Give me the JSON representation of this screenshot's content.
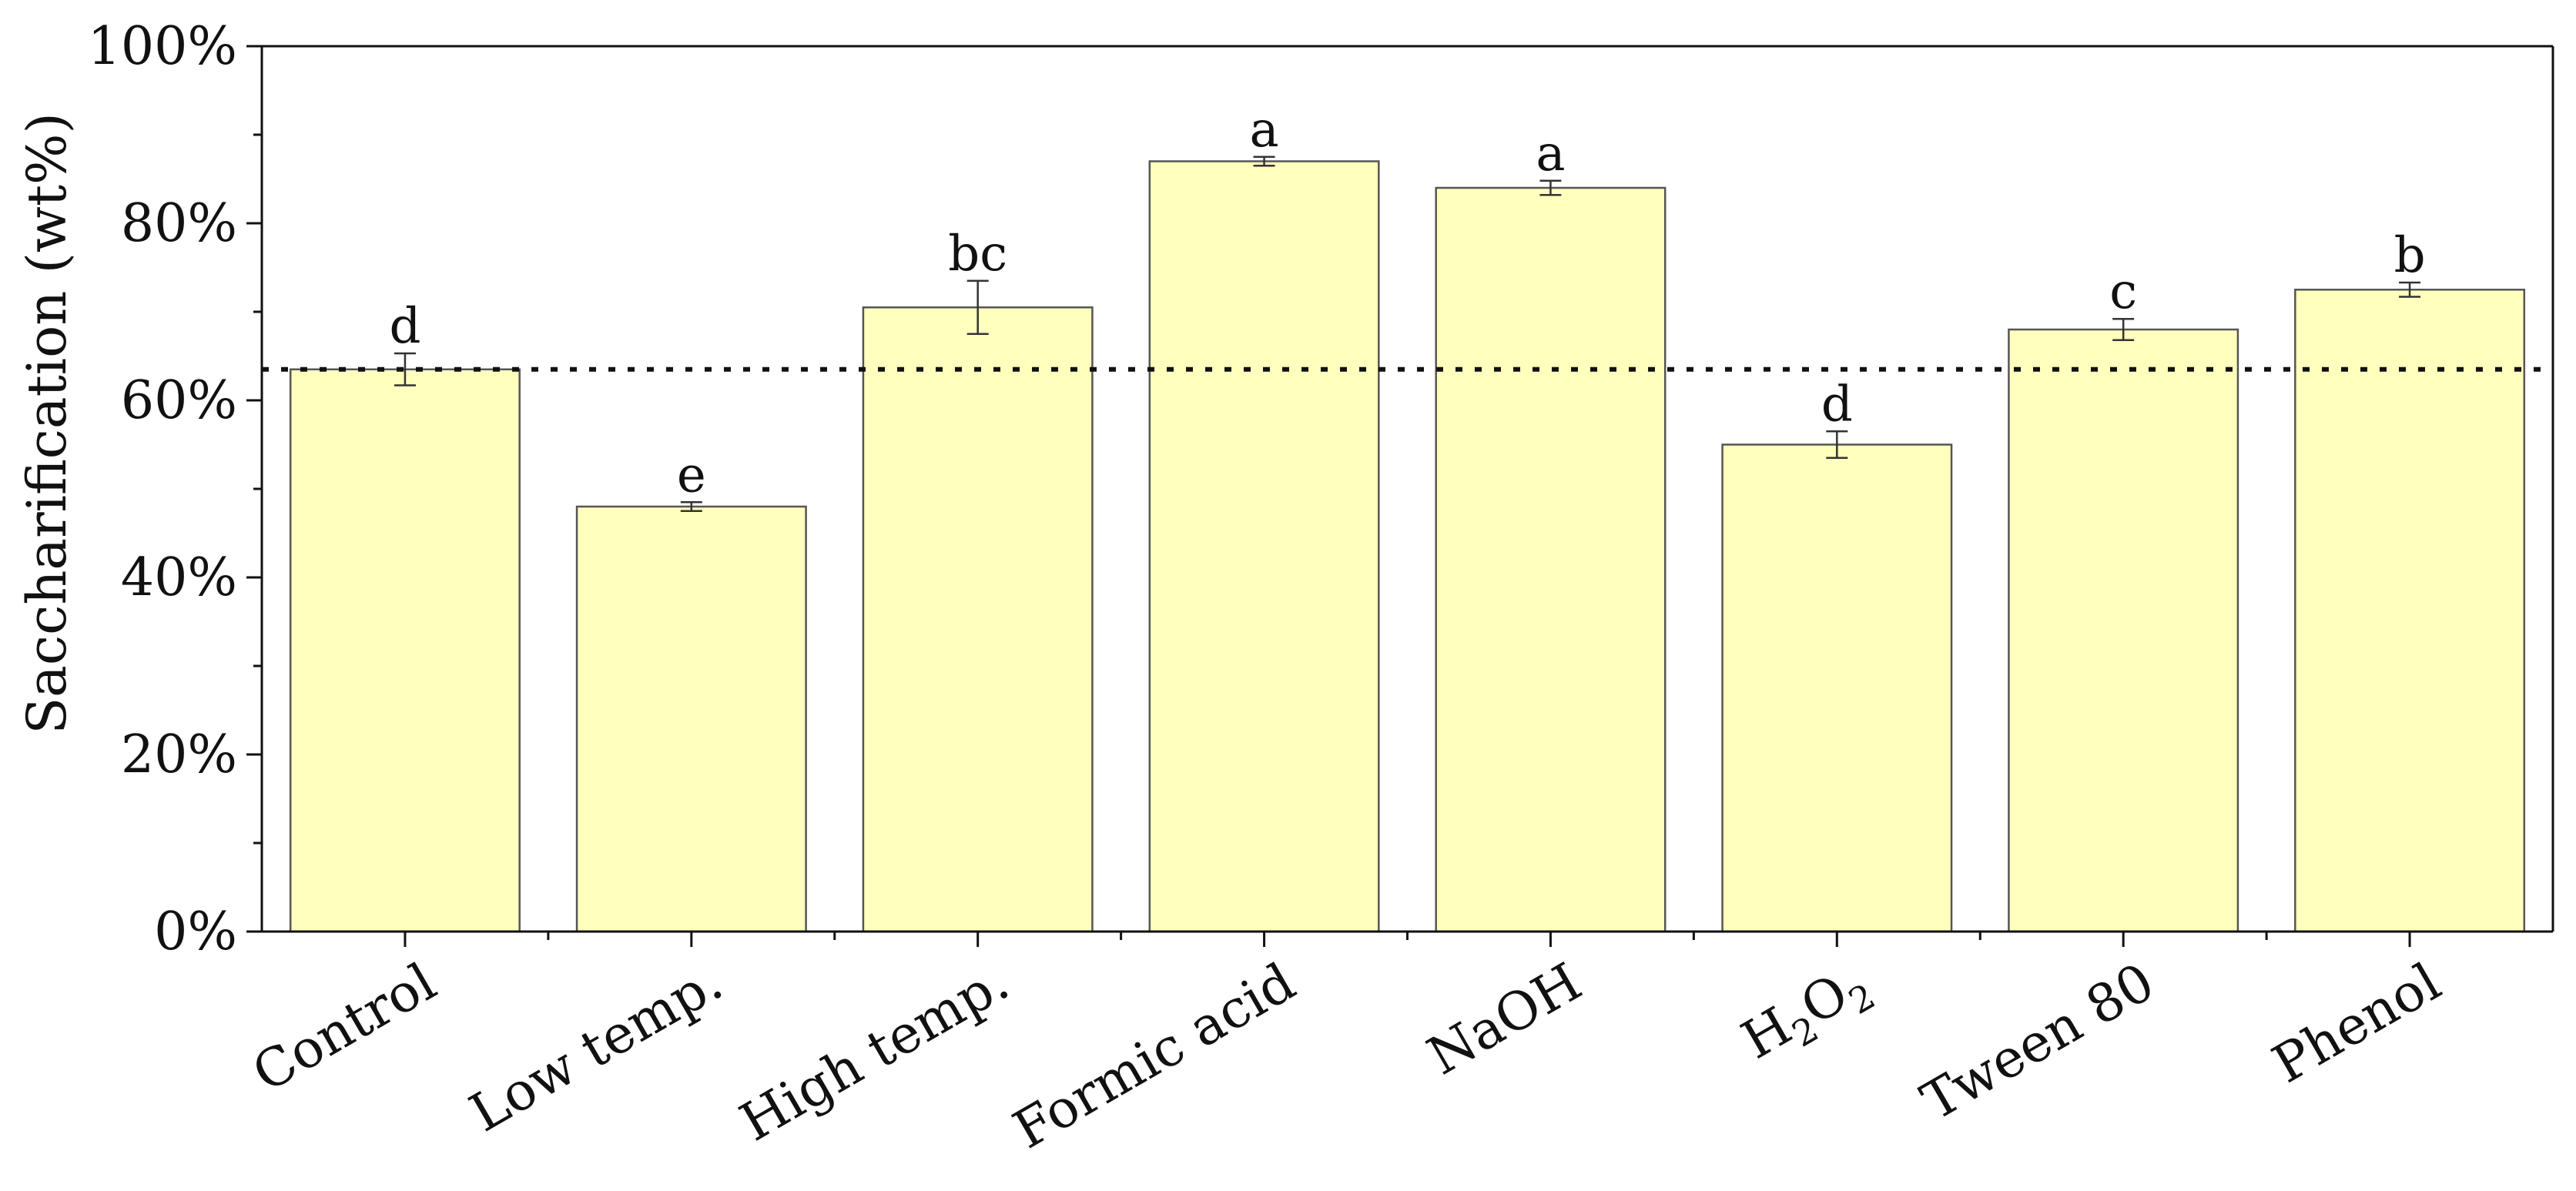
{
  "chart_data": {
    "type": "bar",
    "title": "",
    "xlabel": "",
    "ylabel": "Saccharification (wt%)",
    "ylim": [
      0,
      100
    ],
    "y_ticks": [
      "0%",
      "20%",
      "40%",
      "60%",
      "80%",
      "100%"
    ],
    "categories": [
      {
        "label": "Control"
      },
      {
        "label": "Low temp."
      },
      {
        "label": "High temp."
      },
      {
        "label": "Formic acid"
      },
      {
        "label": "NaOH"
      },
      {
        "label": "H2O2",
        "base": "H",
        "sub1": "2",
        "mid": "O",
        "sub2": "2"
      },
      {
        "label": "Tween 80"
      },
      {
        "label": "Phenol"
      }
    ],
    "values": [
      63.5,
      48.0,
      70.5,
      87.0,
      84.0,
      55.0,
      68.0,
      72.5
    ],
    "errors": [
      1.8,
      0.5,
      3.0,
      0.5,
      0.8,
      1.5,
      1.2,
      0.8
    ],
    "significance": [
      "d",
      "e",
      "bc",
      "a",
      "a",
      "d",
      "c",
      "b"
    ],
    "reference_line": {
      "value": 63.5,
      "style": "dotted"
    },
    "grid": false,
    "colors": {
      "bar_fill": "#FFFFBE",
      "bar_stroke": "#555555",
      "axis": "#111111",
      "error_bar": "#333333",
      "reference_line": "#111111"
    }
  }
}
